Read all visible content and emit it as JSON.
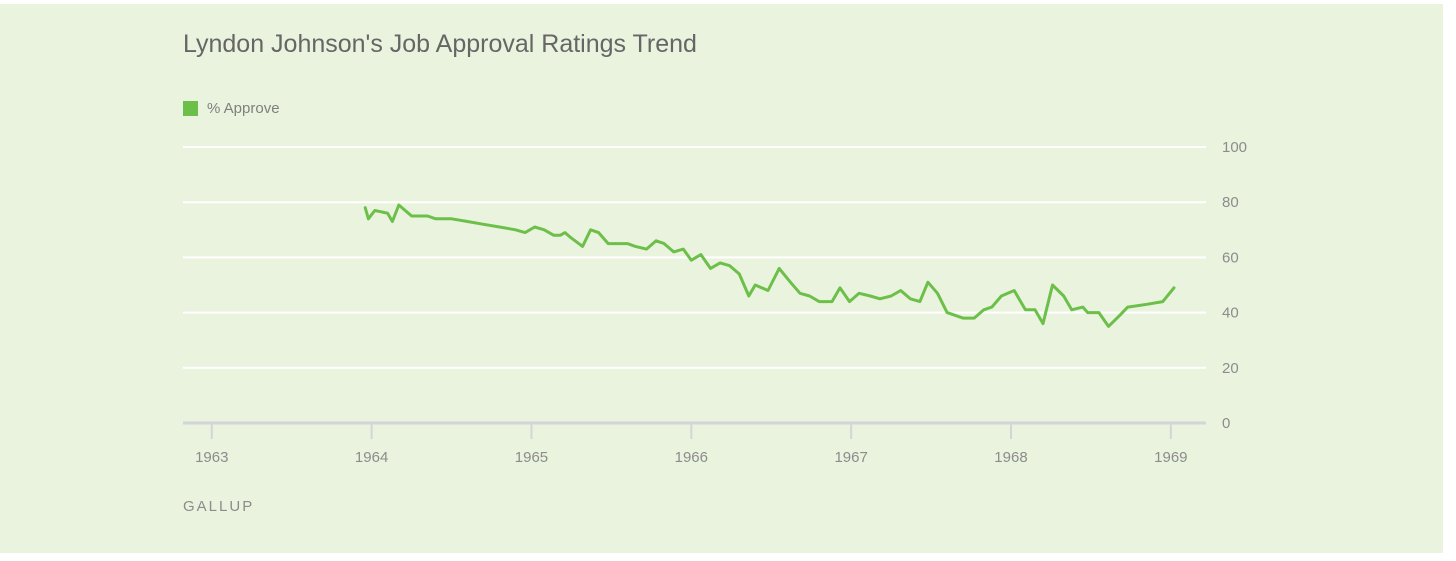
{
  "chart_data": {
    "type": "line",
    "title": "Lyndon Johnson's Job Approval Ratings Trend",
    "legend": [
      {
        "label": "% Approve",
        "color": "#6cc04a"
      }
    ],
    "series": [
      {
        "name": "% Approve",
        "color": "#6cc04a",
        "points": [
          [
            1963.96,
            78
          ],
          [
            1963.98,
            74
          ],
          [
            1964.02,
            77
          ],
          [
            1964.1,
            76
          ],
          [
            1964.13,
            73
          ],
          [
            1964.17,
            79
          ],
          [
            1964.25,
            75
          ],
          [
            1964.35,
            75
          ],
          [
            1964.4,
            74
          ],
          [
            1964.5,
            74
          ],
          [
            1964.6,
            73
          ],
          [
            1964.7,
            72
          ],
          [
            1964.8,
            71
          ],
          [
            1964.9,
            70
          ],
          [
            1964.96,
            69
          ],
          [
            1965.02,
            71
          ],
          [
            1965.08,
            70
          ],
          [
            1965.14,
            68
          ],
          [
            1965.18,
            68
          ],
          [
            1965.21,
            69
          ],
          [
            1965.25,
            67
          ],
          [
            1965.32,
            64
          ],
          [
            1965.37,
            70
          ],
          [
            1965.42,
            69
          ],
          [
            1965.48,
            65
          ],
          [
            1965.55,
            65
          ],
          [
            1965.6,
            65
          ],
          [
            1965.65,
            64
          ],
          [
            1965.72,
            63
          ],
          [
            1965.78,
            66
          ],
          [
            1965.83,
            65
          ],
          [
            1965.89,
            62
          ],
          [
            1965.95,
            63
          ],
          [
            1966.0,
            59
          ],
          [
            1966.06,
            61
          ],
          [
            1966.12,
            56
          ],
          [
            1966.18,
            58
          ],
          [
            1966.24,
            57
          ],
          [
            1966.3,
            54
          ],
          [
            1966.36,
            46
          ],
          [
            1966.4,
            50
          ],
          [
            1966.48,
            48
          ],
          [
            1966.55,
            56
          ],
          [
            1966.62,
            51
          ],
          [
            1966.68,
            47
          ],
          [
            1966.74,
            46
          ],
          [
            1966.8,
            44
          ],
          [
            1966.88,
            44
          ],
          [
            1966.93,
            49
          ],
          [
            1966.99,
            44
          ],
          [
            1967.05,
            47
          ],
          [
            1967.12,
            46
          ],
          [
            1967.18,
            45
          ],
          [
            1967.25,
            46
          ],
          [
            1967.31,
            48
          ],
          [
            1967.37,
            45
          ],
          [
            1967.43,
            44
          ],
          [
            1967.48,
            51
          ],
          [
            1967.54,
            47
          ],
          [
            1967.6,
            40
          ],
          [
            1967.7,
            38
          ],
          [
            1967.77,
            38
          ],
          [
            1967.83,
            41
          ],
          [
            1967.88,
            42
          ],
          [
            1967.94,
            46
          ],
          [
            1968.02,
            48
          ],
          [
            1968.09,
            41
          ],
          [
            1968.15,
            41
          ],
          [
            1968.2,
            36
          ],
          [
            1968.26,
            50
          ],
          [
            1968.33,
            46
          ],
          [
            1968.38,
            41
          ],
          [
            1968.45,
            42
          ],
          [
            1968.48,
            40
          ],
          [
            1968.55,
            40
          ],
          [
            1968.61,
            35
          ],
          [
            1968.68,
            39
          ],
          [
            1968.73,
            42
          ],
          [
            1968.85,
            43
          ],
          [
            1968.95,
            44
          ],
          [
            1969.02,
            49
          ]
        ]
      }
    ],
    "x_ticks": [
      "1963",
      "1964",
      "1965",
      "1966",
      "1967",
      "1968",
      "1969"
    ],
    "y_ticks": [
      "0",
      "20",
      "40",
      "60",
      "80",
      "100"
    ],
    "xlim": [
      1962.82,
      1969.22
    ],
    "ylim": [
      0,
      100
    ],
    "grid": true,
    "legend_position": "top-left"
  },
  "source_label": "GALLUP"
}
